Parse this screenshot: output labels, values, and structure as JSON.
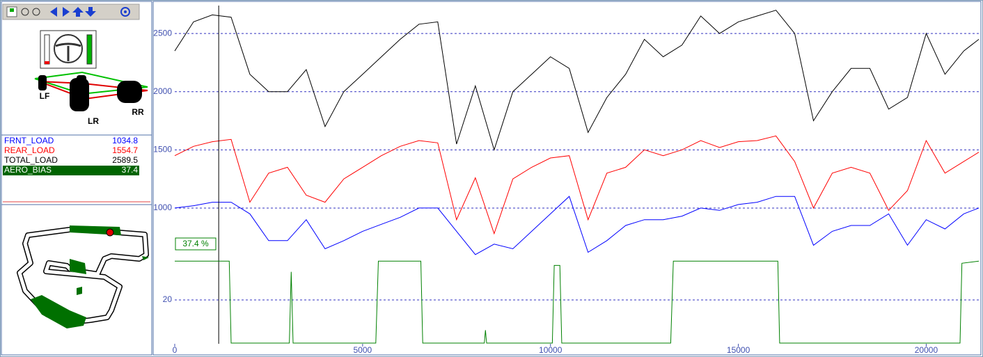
{
  "car": {
    "labels": [
      "LF",
      "LR",
      "RR"
    ]
  },
  "chart_data": [
    {
      "type": "line",
      "x": [
        0,
        500,
        1000,
        1500,
        2000,
        2500,
        3000,
        3500,
        4000,
        4500,
        5000,
        5500,
        6000,
        6500,
        7000,
        7500,
        8000,
        8500,
        9000,
        9500,
        10000,
        10500,
        11000,
        11500,
        12000,
        12500,
        13000,
        13500,
        14000,
        14500,
        15000,
        15500,
        16000,
        16500,
        17000,
        17500,
        18000,
        18500,
        19000,
        19500,
        20000,
        20500,
        21000,
        21400
      ],
      "series": [
        {
          "name": "FRNT_LOAD",
          "color": "#0000ff",
          "cursor_value": 1034.8,
          "values": [
            1000,
            1020,
            1050,
            1050,
            950,
            720,
            720,
            900,
            650,
            720,
            800,
            860,
            920,
            1000,
            1000,
            800,
            600,
            690,
            650,
            800,
            950,
            1100,
            620,
            720,
            850,
            900,
            900,
            930,
            1000,
            980,
            1030,
            1050,
            1100,
            1100,
            680,
            800,
            850,
            850,
            950,
            680,
            900,
            820,
            950,
            1000
          ]
        },
        {
          "name": "REAR_LOAD",
          "color": "#ff0000",
          "cursor_value": 1554.7,
          "values": [
            1450,
            1530,
            1570,
            1590,
            1050,
            1300,
            1350,
            1110,
            1050,
            1250,
            1350,
            1450,
            1530,
            1580,
            1560,
            900,
            1260,
            780,
            1250,
            1350,
            1430,
            1450,
            900,
            1300,
            1350,
            1500,
            1450,
            1500,
            1580,
            1520,
            1570,
            1580,
            1620,
            1400,
            1000,
            1300,
            1350,
            1300,
            980,
            1150,
            1580,
            1300,
            1400,
            1480
          ]
        },
        {
          "name": "TOTAL_LOAD",
          "color": "#000000",
          "cursor_value": 2589.5,
          "values": [
            2350,
            2600,
            2660,
            2640,
            2150,
            2000,
            2000,
            2190,
            1700,
            2000,
            2150,
            2300,
            2450,
            2580,
            2600,
            1550,
            2050,
            1500,
            2000,
            2150,
            2300,
            2200,
            1650,
            1950,
            2150,
            2450,
            2300,
            2400,
            2650,
            2500,
            2600,
            2650,
            2700,
            2500,
            1750,
            2000,
            2200,
            2200,
            1850,
            1950,
            2500,
            2150,
            2350,
            2450
          ]
        }
      ],
      "xlim": [
        0,
        21400
      ],
      "xticks": [
        0,
        5000,
        10000,
        15000,
        20000
      ],
      "ylim": [
        575,
        2740
      ],
      "yticks": [
        1000,
        1500,
        2000,
        2500
      ],
      "grid": true,
      "cursor": 1170
    },
    {
      "type": "line",
      "x": [
        0,
        1450,
        1500,
        3050,
        3100,
        3150,
        5350,
        5420,
        6550,
        6600,
        8240,
        8270,
        8300,
        10050,
        10100,
        10250,
        10300,
        13200,
        13270,
        16050,
        16100,
        20900,
        20950,
        21400
      ],
      "series": [
        {
          "name": "AERO_BIAS",
          "color": "#008000",
          "cursor_value": 37.4,
          "values": [
            38,
            38,
            0,
            0,
            33,
            0,
            0,
            38,
            38,
            0,
            0,
            6,
            0,
            0,
            36,
            36,
            0,
            0,
            38,
            38,
            0,
            0,
            37,
            38
          ]
        }
      ],
      "annotation": "37.4 %",
      "xlim": [
        0,
        21400
      ],
      "ylim": [
        0,
        41.3
      ],
      "yticks": [
        20
      ],
      "grid": true
    }
  ]
}
